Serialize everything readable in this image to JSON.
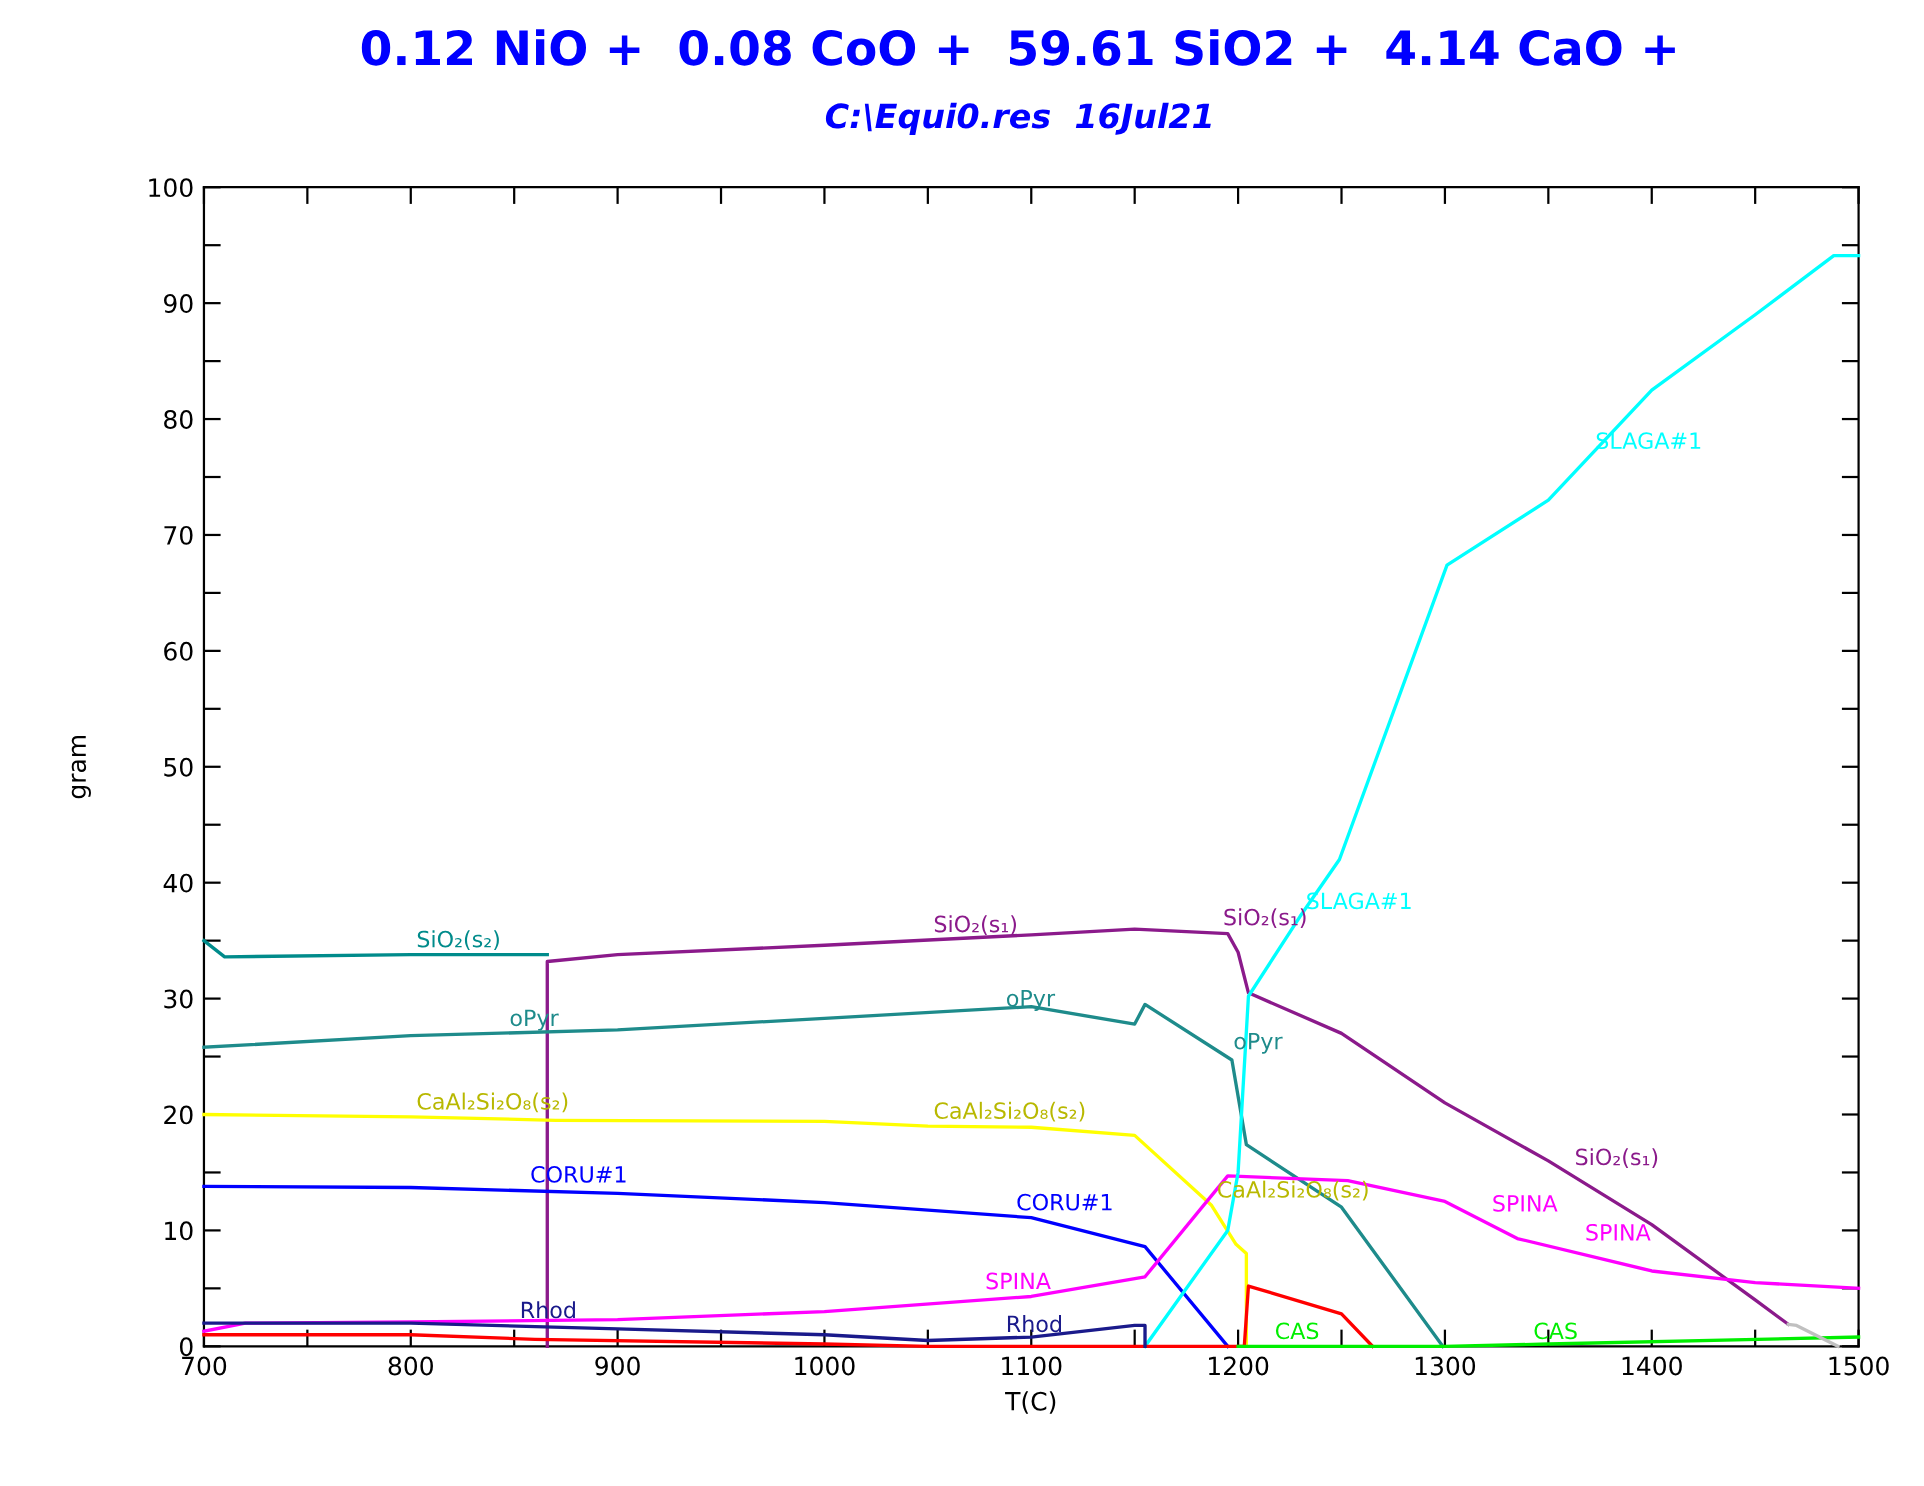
{
  "chart_data": {
    "type": "line",
    "title": "0.12 NiO +  0.08 CoO +  59.61 SiO2 +  4.14 CaO +",
    "subtitle": "C:\\Equi0.res  16Jul21",
    "xlabel": "T(C)",
    "ylabel": "gram",
    "xlim": [
      700,
      1500
    ],
    "ylim": [
      0,
      100
    ],
    "xticks": [
      700,
      {
        "value": 750,
        "label": null
      },
      800,
      {
        "value": 850,
        "label": null
      },
      900,
      {
        "value": 950,
        "label": null
      },
      1000,
      {
        "value": 1050,
        "label": null
      },
      1100,
      {
        "value": 1150,
        "label": null
      },
      1200,
      {
        "value": 1250,
        "label": null
      },
      1300,
      {
        "value": 1350,
        "label": null
      },
      1400,
      {
        "value": 1450,
        "label": null
      },
      1500
    ],
    "yticks": [
      0,
      {
        "value": 5,
        "label": null
      },
      10,
      {
        "value": 15,
        "label": null
      },
      20,
      {
        "value": 25,
        "label": null
      },
      30,
      {
        "value": 35,
        "label": null
      },
      40,
      {
        "value": 45,
        "label": null
      },
      50,
      {
        "value": 55,
        "label": null
      },
      60,
      {
        "value": 65,
        "label": null
      },
      70,
      {
        "value": 75,
        "label": null
      },
      80,
      {
        "value": 85,
        "label": null
      },
      90,
      {
        "value": 95,
        "label": null
      },
      100
    ],
    "grid": false,
    "marker": "none",
    "line_style": "solid",
    "series": [
      {
        "color": "#008b8b",
        "x": [
          700,
          710,
          800,
          866
        ],
        "values": [
          35,
          33.6,
          33.8,
          33.8
        ]
      },
      {
        "color": "#8b1a8b",
        "x": [
          866,
          866,
          900,
          1000,
          1100,
          1150,
          1195,
          1200,
          1205,
          1250,
          1300,
          1350,
          1400,
          1450,
          1466
        ],
        "values": [
          0,
          33.2,
          33.8,
          34.6,
          35.5,
          36,
          35.6,
          34,
          30.5,
          27,
          21,
          16,
          10.5,
          4,
          1.9
        ]
      },
      {
        "color": "#1e8b8b",
        "x": [
          700,
          800,
          900,
          1000,
          1100,
          1150,
          1155,
          1197,
          1204,
          1250,
          1299
        ],
        "values": [
          25.8,
          26.8,
          27.3,
          28.3,
          29.3,
          27.8,
          29.5,
          24.7,
          17.4,
          12,
          0
        ]
      },
      {
        "color": "#ffff00",
        "x": [
          700,
          800,
          870,
          1000,
          1050,
          1100,
          1150,
          1187,
          1199,
          1204,
          1204
        ],
        "values": [
          20,
          19.8,
          19.5,
          19.4,
          19,
          18.9,
          18.2,
          12.2,
          8.8,
          8,
          0
        ]
      },
      {
        "color": "#0000ff",
        "x": [
          700,
          800,
          900,
          1000,
          1100,
          1155,
          1195
        ],
        "values": [
          13.8,
          13.7,
          13.2,
          12.4,
          11.1,
          8.6,
          0
        ]
      },
      {
        "color": "#ff00ff",
        "x": [
          700,
          720,
          800,
          900,
          1000,
          1100,
          1155,
          1195,
          1253,
          1300,
          1335,
          1400,
          1450,
          1500
        ],
        "values": [
          1.3,
          2,
          2.1,
          2.3,
          3,
          4.3,
          6,
          14.7,
          14.3,
          12.5,
          9.3,
          6.5,
          5.5,
          5
        ]
      },
      {
        "color": "#00ffff",
        "x": [
          1155,
          1195,
          1200,
          1205,
          1230,
          1249,
          1301,
          1350,
          1400,
          1450,
          1488,
          1500
        ],
        "values": [
          0,
          10,
          15,
          30.2,
          37.1,
          42,
          67.4,
          73,
          82.5,
          89,
          94.1,
          94.1
        ]
      },
      {
        "color": "#ff0000",
        "x": [
          700,
          800,
          860,
          1000,
          1050,
          1203,
          1205,
          1250,
          1265
        ],
        "values": [
          1,
          1,
          0.6,
          0.2,
          0,
          0,
          5.2,
          2.8,
          0
        ]
      },
      {
        "color": "#1a1a8b",
        "x": [
          700,
          800,
          900,
          1000,
          1050,
          1100,
          1150,
          1155,
          1155
        ],
        "values": [
          2,
          2,
          1.5,
          1,
          0.5,
          0.8,
          1.8,
          1.8,
          0
        ]
      },
      {
        "color": "#00ee00",
        "x": [
          1200,
          1300,
          1350,
          1500
        ],
        "values": [
          0,
          0,
          0.2,
          0.8
        ]
      },
      {
        "color": "#c0c0c0",
        "x": [
          1466,
          1470,
          1490
        ],
        "values": [
          1.9,
          1.8,
          0
        ]
      }
    ],
    "annotations": [
      {
        "text": "SiO₂(s₂)",
        "x": 800,
        "y": 33.8
      },
      {
        "text": "SiO₂(s₁)",
        "x": 1050,
        "y": 35.1
      },
      {
        "text": "SiO₂(s₁)",
        "x": 1190,
        "y": 35.7
      },
      {
        "text": "SiO₂(s₁)",
        "x": 1360,
        "y": 15
      },
      {
        "text": "oPyr",
        "x": 845,
        "y": 27
      },
      {
        "text": "oPyr",
        "x": 1085,
        "y": 28.7
      },
      {
        "text": "oPyr",
        "x": 1195,
        "y": 25
      },
      {
        "text": "CaAl₂Si₂O₈(s₂)",
        "x": 800,
        "y": 19.8
      },
      {
        "text": "CaAl₂Si₂O₈(s₂)",
        "x": 1050,
        "y": 19
      },
      {
        "text": "CaAl₂Si₂O₈(s₂)",
        "x": 1187,
        "y": 12.2
      },
      {
        "text": "CORU#1",
        "x": 855,
        "y": 13.5
      },
      {
        "text": "CORU#1",
        "x": 1090,
        "y": 11.1
      },
      {
        "text": "SPINA",
        "x": 1075,
        "y": 4.3
      },
      {
        "text": "SPINA",
        "x": 1320,
        "y": 11
      },
      {
        "text": "SPINA",
        "x": 1365,
        "y": 8.5
      },
      {
        "text": "Rhod",
        "x": 850,
        "y": 1.8
      },
      {
        "text": "Rhod",
        "x": 1085,
        "y": 0.6
      },
      {
        "text": "SLAGA#1",
        "x": 1370,
        "y": 76.8
      },
      {
        "text": "SLAGA#1",
        "x": 1230,
        "y": 37.1
      },
      {
        "text": "CAS",
        "x": 1215,
        "y": 0
      },
      {
        "text": "CAS",
        "x": 1340,
        "y": 0
      }
    ]
  }
}
